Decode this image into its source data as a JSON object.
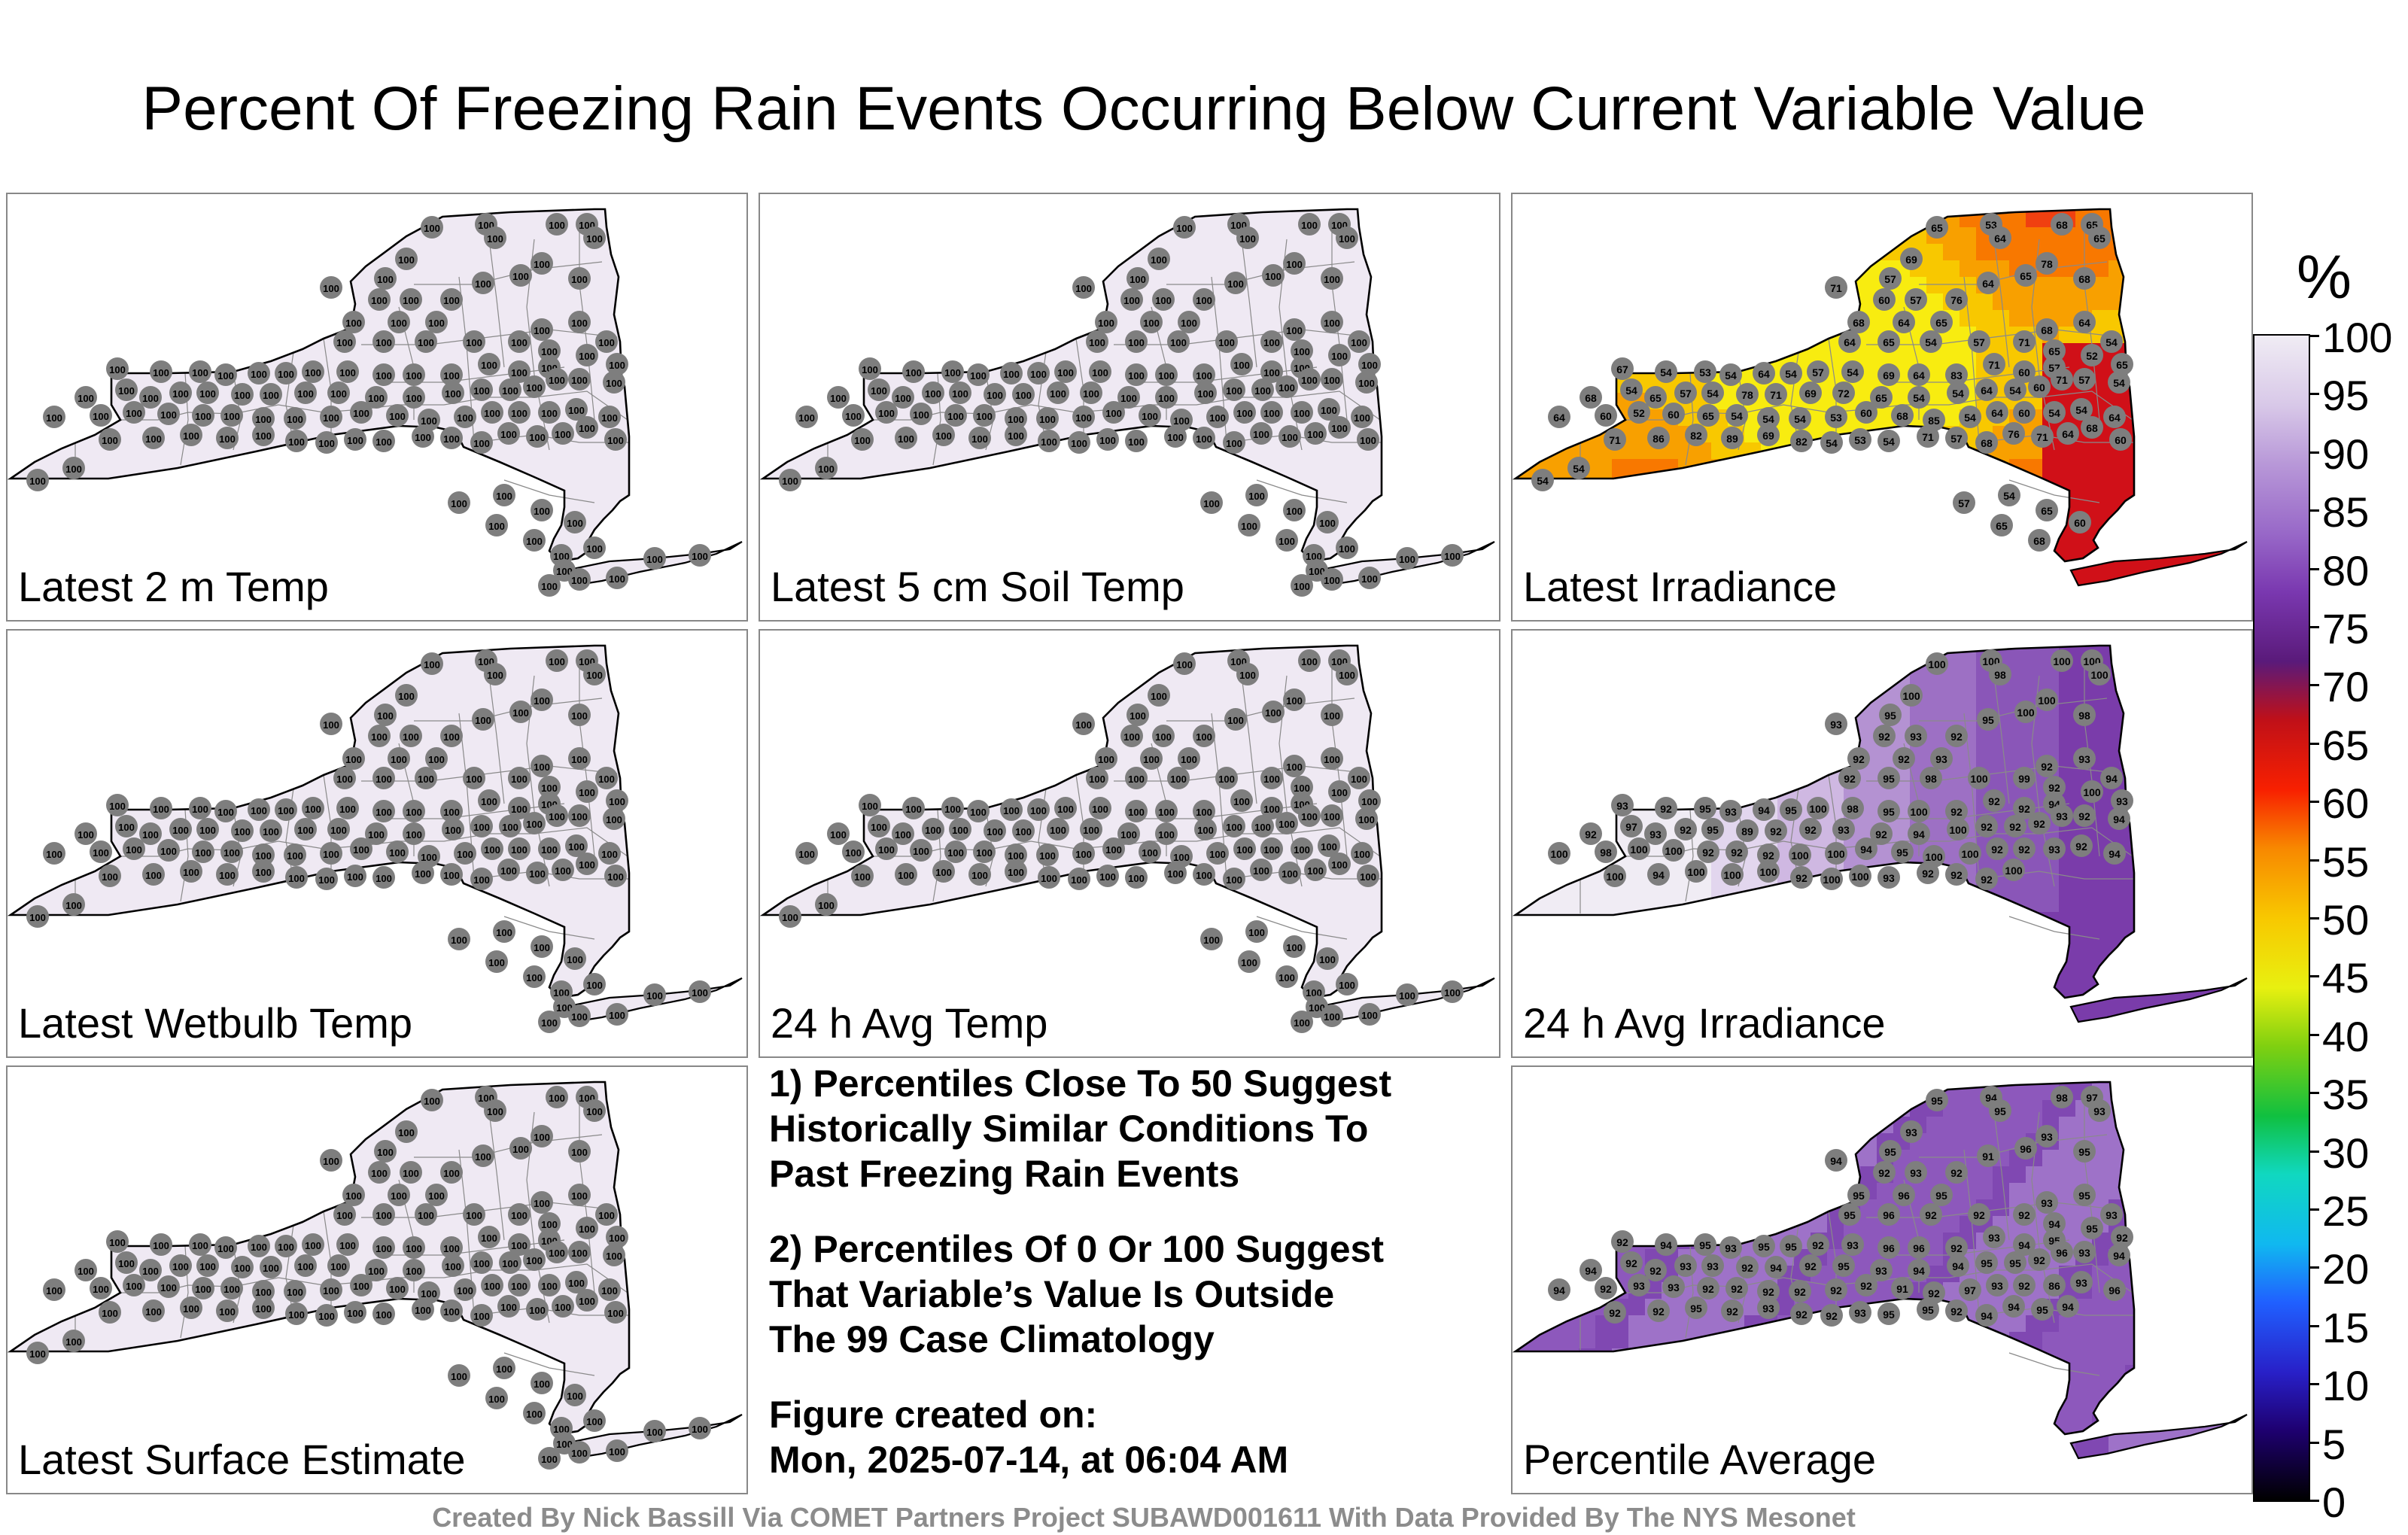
{
  "title": "Percent Of Freezing Rain Events Occurring Below Current Variable Value",
  "panels": [
    {
      "label": "Latest 2 m Temp",
      "mode": "uniform",
      "value": "100"
    },
    {
      "label": "Latest 5 cm Soil Temp",
      "mode": "uniform",
      "value": "100"
    },
    {
      "label": "Latest Irradiance",
      "mode": "irradiance",
      "values": [
        "53",
        "65",
        "68",
        "65",
        "65",
        "64",
        "69",
        "57",
        "71",
        "65",
        "78",
        "68",
        "60",
        "57",
        "76",
        "64",
        "65",
        "64",
        "68",
        "64",
        "65",
        "54",
        "57",
        "71",
        "68",
        "64",
        "54",
        "65",
        "67",
        "54",
        "53",
        "54",
        "64",
        "54",
        "57",
        "54",
        "69",
        "64",
        "83",
        "71",
        "60",
        "57",
        "52",
        "65",
        "68",
        "54",
        "65",
        "57",
        "54",
        "78",
        "71",
        "69",
        "72",
        "65",
        "54",
        "54",
        "64",
        "54",
        "60",
        "71",
        "57",
        "54",
        "64",
        "60",
        "52",
        "60",
        "65",
        "54",
        "54",
        "54",
        "53",
        "60",
        "68",
        "85",
        "54",
        "64",
        "60",
        "54",
        "54",
        "64",
        "71",
        "86",
        "82",
        "89",
        "69",
        "82",
        "54",
        "53",
        "54",
        "71",
        "57",
        "68",
        "76",
        "71",
        "64",
        "68",
        "60",
        "54",
        "54",
        "57",
        "54",
        "65",
        "60",
        "65",
        "68"
      ]
    },
    {
      "label": "Latest Wetbulb Temp",
      "mode": "uniform",
      "value": "100"
    },
    {
      "label": "24 h Avg Temp",
      "mode": "uniform",
      "value": "100"
    },
    {
      "label": "24 h Avg Irradiance",
      "mode": "avgirr",
      "values": [
        "100",
        "100",
        "100",
        "100",
        "100",
        "98",
        "100",
        "95",
        "93",
        "100",
        "100",
        "98",
        "92",
        "93",
        "92",
        "95",
        "93",
        "92",
        "92",
        "92",
        "95",
        "98",
        "100",
        "99",
        "92",
        "93",
        "94",
        "92",
        "93",
        "92",
        "95",
        "93",
        "94",
        "95",
        "100",
        "98",
        "95",
        "100",
        "92",
        "92",
        "92",
        "94",
        "100",
        "93",
        "92",
        "97",
        "93",
        "92",
        "95",
        "89",
        "92",
        "92",
        "93",
        "92",
        "94",
        "100",
        "92",
        "92",
        "92",
        "93",
        "92",
        "94",
        "100",
        "98",
        "100",
        "100",
        "92",
        "92",
        "92",
        "100",
        "100",
        "94",
        "95",
        "100",
        "100",
        "92",
        "92",
        "93",
        "92",
        "94",
        "100",
        "94",
        "100",
        "100",
        "100",
        "92",
        "100",
        "100",
        "93",
        "92",
        "92",
        "92",
        "100"
      ]
    },
    {
      "label": "Percentile Average",
      "mode": "pctavg",
      "values": [
        "94",
        "95",
        "98",
        "97",
        "93",
        "95",
        "93",
        "95",
        "94",
        "96",
        "93",
        "95",
        "92",
        "93",
        "92",
        "91",
        "95",
        "96",
        "95",
        "95",
        "96",
        "92",
        "92",
        "92",
        "93",
        "95",
        "93",
        "94",
        "92",
        "94",
        "95",
        "93",
        "95",
        "95",
        "92",
        "93",
        "96",
        "96",
        "92",
        "93",
        "94",
        "95",
        "95",
        "92",
        "94",
        "92",
        "92",
        "93",
        "93",
        "92",
        "94",
        "92",
        "95",
        "93",
        "94",
        "94",
        "95",
        "95",
        "92",
        "96",
        "93",
        "94",
        "94",
        "92",
        "93",
        "93",
        "92",
        "92",
        "92",
        "92",
        "92",
        "92",
        "91",
        "92",
        "97",
        "93",
        "92",
        "86",
        "93",
        "96",
        "92",
        "92",
        "95",
        "92",
        "93",
        "92",
        "92",
        "93",
        "95",
        "95",
        "92",
        "94",
        "94",
        "95",
        "94"
      ]
    }
  ],
  "notes": {
    "line1": "1) Percentiles Close To 50 Suggest",
    "line2": "Historically Similar Conditions To",
    "line3": "Past Freezing Rain Events",
    "line4": "2) Percentiles Of 0 Or 100 Suggest",
    "line5": "That Variable’s Value Is Outside",
    "line6": "The 99 Case Climatology",
    "line7": "Figure created on:",
    "line8": "Mon, 2025-07-14, at 06:04 AM"
  },
  "colorbar": {
    "title": "%",
    "ticks": [
      "100",
      "95",
      "90",
      "85",
      "80",
      "75",
      "70",
      "65",
      "60",
      "55",
      "50",
      "45",
      "40",
      "35",
      "30",
      "25",
      "20",
      "15",
      "10",
      "5",
      "0"
    ],
    "colors": [
      "#000000",
      "#1e0070",
      "#2820c8",
      "#2060ff",
      "#10b8f0",
      "#10d8c0",
      "#10c040",
      "#80d010",
      "#e8f010",
      "#f8c800",
      "#f88800",
      "#f82000",
      "#c01018",
      "#5a1a7a",
      "#7a38b0",
      "#9868c8",
      "#b898d8",
      "#d8c8e8",
      "#f0ecf4"
    ]
  },
  "footer": "Created By Nick Bassill Via COMET Partners Project SUBAWD001611 With Data Provided By The NYS Mesonet"
}
